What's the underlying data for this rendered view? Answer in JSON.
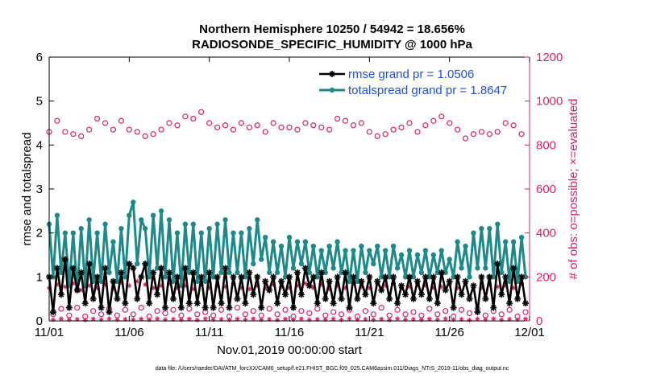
{
  "colors": {
    "rmse": "#000000",
    "spread": "#1a8a8a",
    "obs": "#d9206a",
    "legend_text": "#1f4fe0",
    "axis": "#000000"
  },
  "chart_data": {
    "type": "line",
    "title": "Northern Hemisphere 10250 / 54942 = 18.656%",
    "subtitle": "RADIOSONDE_SPECIFIC_HUMIDITY @ 1000 hPa",
    "xlabel": "Nov.01,2019 00:00:00 start",
    "ylabel": "rmse and totalspread",
    "y2label": "# of obs: o=possible; ×=evaluated",
    "xlim": [
      0,
      30
    ],
    "ylim": [
      0,
      6
    ],
    "y2lim": [
      0,
      1200
    ],
    "x_ticks": [
      0,
      5,
      10,
      15,
      20,
      25,
      30
    ],
    "x_tick_labels": [
      "11/01",
      "11/06",
      "11/11",
      "11/16",
      "11/21",
      "11/26",
      "12/01"
    ],
    "y_ticks": [
      0,
      1,
      2,
      3,
      4,
      5,
      6
    ],
    "y_tick_labels": [
      "0",
      "1",
      "2",
      "3",
      "4",
      "5",
      "6"
    ],
    "y2_ticks": [
      0,
      200,
      400,
      600,
      800,
      1000,
      1200
    ],
    "y2_tick_labels": [
      "0",
      "200",
      "400",
      "600",
      "800",
      "1000",
      "1200"
    ],
    "legend": {
      "position": "top-right",
      "entries": [
        {
          "name": "rmse grand pr = 1.0506",
          "key": "rmse"
        },
        {
          "name": "totalspread grand pr = 1.8647",
          "key": "spread"
        }
      ]
    },
    "series": [
      {
        "name": "rmse",
        "x": [
          0.0,
          0.25,
          0.5,
          0.75,
          1.0,
          1.25,
          1.5,
          1.75,
          2.0,
          2.25,
          2.5,
          2.75,
          3.0,
          3.25,
          3.5,
          3.75,
          4.0,
          4.25,
          4.5,
          4.75,
          5.0,
          5.25,
          5.5,
          5.75,
          6.0,
          6.25,
          6.5,
          6.75,
          7.0,
          7.25,
          7.5,
          7.75,
          8.0,
          8.25,
          8.5,
          8.75,
          9.0,
          9.25,
          9.5,
          9.75,
          10.0,
          10.25,
          10.5,
          10.75,
          11.0,
          11.25,
          11.5,
          11.75,
          12.0,
          12.25,
          12.5,
          12.75,
          13.0,
          13.25,
          13.5,
          13.75,
          14.0,
          14.25,
          14.5,
          14.75,
          15.0,
          15.25,
          15.5,
          15.75,
          16.0,
          16.25,
          16.5,
          16.75,
          17.0,
          17.25,
          17.5,
          17.75,
          18.0,
          18.25,
          18.5,
          18.75,
          19.0,
          19.25,
          19.5,
          19.75,
          20.0,
          20.25,
          20.5,
          20.75,
          21.0,
          21.25,
          21.5,
          21.75,
          22.0,
          22.25,
          22.5,
          22.75,
          23.0,
          23.25,
          23.5,
          23.75,
          24.0,
          24.25,
          24.5,
          24.75,
          25.0,
          25.25,
          25.5,
          25.75,
          26.0,
          26.25,
          26.5,
          26.75,
          27.0,
          27.25,
          27.5,
          27.75,
          28.0,
          28.25,
          28.5,
          28.75,
          29.0,
          29.25,
          29.5,
          29.75
        ],
        "values": [
          1.0,
          0.2,
          1.2,
          0.6,
          1.4,
          0.3,
          1.2,
          0.7,
          1.1,
          0.4,
          1.3,
          0.5,
          1.0,
          0.3,
          1.2,
          0.2,
          0.9,
          0.5,
          1.1,
          0.4,
          1.3,
          1.2,
          0.5,
          1.0,
          1.3,
          0.4,
          1.1,
          0.6,
          1.2,
          0.3,
          1.1,
          0.5,
          1.0,
          0.3,
          1.2,
          0.4,
          1.1,
          0.4,
          1.0,
          0.3,
          1.1,
          0.3,
          1.0,
          0.4,
          1.2,
          0.3,
          1.0,
          0.5,
          1.0,
          0.4,
          1.1,
          0.6,
          1.0,
          0.3,
          0.9,
          0.7,
          1.0,
          0.4,
          0.9,
          0.6,
          1.0,
          0.3,
          1.1,
          0.6,
          1.2,
          0.8,
          1.0,
          0.4,
          1.1,
          0.5,
          0.9,
          0.4,
          1.0,
          0.5,
          1.1,
          0.3,
          1.0,
          0.5,
          0.9,
          0.6,
          1.0,
          0.4,
          0.9,
          0.7,
          1.0,
          0.5,
          1.0,
          0.4,
          0.8,
          0.6,
          1.0,
          0.5,
          0.9,
          0.6,
          1.0,
          0.5,
          1.0,
          0.4,
          1.1,
          0.7,
          0.9,
          0.3,
          1.0,
          0.6,
          0.9,
          0.5,
          0.8,
          0.2,
          1.0,
          0.5,
          1.0,
          0.3,
          1.3,
          0.6,
          1.0,
          0.4,
          1.2,
          0.5,
          1.0,
          0.4
        ]
      },
      {
        "name": "totalspread",
        "x": [
          0.0,
          0.25,
          0.5,
          0.75,
          1.0,
          1.25,
          1.5,
          1.75,
          2.0,
          2.25,
          2.5,
          2.75,
          3.0,
          3.25,
          3.5,
          3.75,
          4.0,
          4.25,
          4.5,
          4.75,
          5.0,
          5.25,
          5.5,
          5.75,
          6.0,
          6.25,
          6.5,
          6.75,
          7.0,
          7.25,
          7.5,
          7.75,
          8.0,
          8.25,
          8.5,
          8.75,
          9.0,
          9.25,
          9.5,
          9.75,
          10.0,
          10.25,
          10.5,
          10.75,
          11.0,
          11.25,
          11.5,
          11.75,
          12.0,
          12.25,
          12.5,
          12.75,
          13.0,
          13.25,
          13.5,
          13.75,
          14.0,
          14.25,
          14.5,
          14.75,
          15.0,
          15.25,
          15.5,
          15.75,
          16.0,
          16.25,
          16.5,
          16.75,
          17.0,
          17.25,
          17.5,
          17.75,
          18.0,
          18.25,
          18.5,
          18.75,
          19.0,
          19.25,
          19.5,
          19.75,
          20.0,
          20.25,
          20.5,
          20.75,
          21.0,
          21.25,
          21.5,
          21.75,
          22.0,
          22.25,
          22.5,
          22.75,
          23.0,
          23.25,
          23.5,
          23.75,
          24.0,
          24.25,
          24.5,
          24.75,
          25.0,
          25.25,
          25.5,
          25.75,
          26.0,
          26.25,
          26.5,
          26.75,
          27.0,
          27.25,
          27.5,
          27.75,
          28.0,
          28.25,
          28.5,
          28.75,
          29.0,
          29.25,
          29.5,
          29.75
        ],
        "values": [
          2.2,
          1.0,
          2.4,
          1.1,
          2.0,
          0.8,
          2.0,
          0.7,
          2.1,
          0.8,
          2.3,
          0.9,
          2.0,
          0.9,
          2.2,
          1.1,
          1.8,
          0.9,
          2.1,
          1.0,
          2.4,
          2.7,
          1.3,
          2.3,
          2.1,
          1.0,
          2.4,
          1.2,
          2.5,
          1.0,
          2.3,
          0.9,
          2.0,
          0.8,
          2.2,
          1.1,
          2.2,
          0.9,
          2.0,
          0.9,
          2.1,
          1.0,
          2.2,
          1.1,
          2.3,
          1.1,
          2.0,
          1.1,
          2.0,
          1.0,
          2.1,
          1.3,
          2.3,
          1.4,
          1.9,
          1.1,
          1.8,
          1.1,
          1.7,
          1.0,
          1.9,
          1.2,
          1.8,
          1.3,
          1.8,
          1.1,
          1.7,
          1.0,
          1.6,
          1.1,
          1.7,
          1.2,
          1.8,
          1.1,
          1.6,
          0.9,
          1.6,
          0.9,
          1.7,
          1.1,
          1.6,
          1.3,
          1.7,
          1.0,
          1.6,
          1.0,
          1.7,
          1.2,
          1.5,
          1.0,
          1.6,
          1.0,
          1.5,
          1.1,
          1.6,
          1.0,
          1.5,
          1.1,
          1.6,
          1.1,
          1.4,
          1.0,
          1.8,
          1.2,
          1.7,
          1.0,
          2.0,
          1.2,
          2.1,
          1.2,
          2.1,
          1.0,
          2.2,
          1.1,
          1.8,
          0.9,
          1.8,
          0.9,
          1.9,
          1.0
        ]
      },
      {
        "name": "obs possible (o)",
        "axis": "right",
        "x": [
          0.0,
          0.5,
          1.0,
          1.5,
          2.0,
          2.5,
          3.0,
          3.5,
          4.0,
          4.5,
          5.0,
          5.5,
          6.0,
          6.5,
          7.0,
          7.5,
          8.0,
          8.5,
          9.0,
          9.5,
          10.0,
          10.5,
          11.0,
          11.5,
          12.0,
          12.5,
          13.0,
          13.5,
          14.0,
          14.5,
          15.0,
          15.5,
          16.0,
          16.5,
          17.0,
          17.5,
          18.0,
          18.5,
          19.0,
          19.5,
          20.0,
          20.5,
          21.0,
          21.5,
          22.0,
          22.5,
          23.0,
          23.5,
          24.0,
          24.5,
          25.0,
          25.5,
          26.0,
          26.5,
          27.0,
          27.5,
          28.0,
          28.5,
          29.0,
          29.5
        ],
        "values": [
          860,
          910,
          860,
          850,
          840,
          870,
          920,
          900,
          870,
          910,
          870,
          860,
          840,
          850,
          870,
          900,
          890,
          930,
          920,
          950,
          900,
          880,
          890,
          870,
          900,
          880,
          890,
          860,
          900,
          880,
          880,
          870,
          900,
          890,
          880,
          870,
          920,
          910,
          890,
          900,
          860,
          840,
          850,
          870,
          880,
          900,
          860,
          890,
          910,
          930,
          900,
          870,
          830,
          850,
          860,
          850,
          860,
          900,
          890,
          850
        ]
      },
      {
        "name": "obs possible low (o)",
        "axis": "right",
        "x": [
          0.25,
          0.75,
          1.25,
          1.75,
          2.25,
          2.75,
          3.25,
          3.75,
          4.25,
          4.75,
          5.25,
          5.75,
          6.25,
          6.75,
          7.25,
          7.75,
          8.25,
          8.75,
          9.25,
          9.75,
          10.25,
          10.75,
          11.25,
          11.75,
          12.25,
          12.75,
          13.25,
          13.75,
          14.25,
          14.75,
          15.25,
          15.75,
          16.25,
          16.75,
          17.25,
          17.75,
          18.25,
          18.75,
          19.25,
          19.75,
          20.25,
          20.75,
          21.25,
          21.75,
          22.25,
          22.75,
          23.25,
          23.75,
          24.25,
          24.75,
          25.25,
          25.75,
          26.25,
          26.75,
          27.25,
          27.75,
          28.25,
          28.75,
          29.25,
          29.75
        ],
        "values": [
          30,
          55,
          25,
          60,
          20,
          45,
          30,
          55,
          25,
          50,
          30,
          60,
          20,
          45,
          35,
          50,
          25,
          55,
          30,
          40,
          25,
          50,
          20,
          60,
          30,
          45,
          25,
          55,
          30,
          50,
          20,
          45,
          35,
          55,
          25,
          40,
          30,
          50,
          20,
          45,
          30,
          60,
          25,
          50,
          30,
          40,
          25,
          55,
          30,
          45,
          20,
          50,
          35,
          55,
          25,
          45,
          30,
          50,
          20,
          40
        ]
      },
      {
        "name": "obs evaluated (×)",
        "axis": "right",
        "x": [
          0.0,
          0.5,
          1.0,
          1.5,
          2.0,
          2.5,
          3.0,
          3.5,
          4.0,
          4.5,
          5.0,
          5.5,
          6.0,
          6.5,
          7.0,
          7.5,
          8.0,
          8.5,
          9.0,
          9.5,
          10.0,
          10.5,
          11.0,
          11.5,
          12.0,
          12.5,
          13.0,
          13.5,
          14.0,
          14.5,
          15.0,
          15.5,
          16.0,
          16.5,
          17.0,
          17.5,
          18.0,
          18.5,
          19.0,
          19.5,
          20.0,
          20.5,
          21.0,
          21.5,
          22.0,
          22.5,
          23.0,
          23.5,
          24.0,
          24.5,
          25.0,
          25.5,
          26.0,
          26.5,
          27.0,
          27.5,
          28.0,
          28.5,
          29.0,
          29.5
        ],
        "values": [
          150,
          165,
          155,
          170,
          140,
          160,
          150,
          165,
          145,
          175,
          160,
          180,
          165,
          150,
          160,
          170,
          150,
          160,
          145,
          165,
          150,
          160,
          155,
          170,
          150,
          145,
          160,
          150,
          165,
          155,
          150,
          160,
          170,
          150,
          165,
          145,
          160,
          150,
          170,
          155,
          150,
          165,
          160,
          170,
          150,
          155,
          165,
          160,
          150,
          155,
          165,
          150,
          170,
          160,
          150,
          165,
          155,
          160,
          150,
          170
        ]
      },
      {
        "name": "obs evaluated low (×)",
        "axis": "right",
        "x": [
          0.25,
          0.75,
          1.25,
          1.75,
          2.25,
          2.75,
          3.25,
          3.75,
          4.25,
          4.75,
          5.25,
          5.75,
          6.25,
          6.75,
          7.25,
          7.75,
          8.25,
          8.75,
          9.25,
          9.75,
          10.25,
          10.75,
          11.25,
          11.75,
          12.25,
          12.75,
          13.25,
          13.75,
          14.25,
          14.75,
          15.25,
          15.75,
          16.25,
          16.75,
          17.25,
          17.75,
          18.25,
          18.75,
          19.25,
          19.75,
          20.25,
          20.75,
          21.25,
          21.75,
          22.25,
          22.75,
          23.25,
          23.75,
          24.25,
          24.75,
          25.25,
          25.75,
          26.25,
          26.75,
          27.25,
          27.75,
          28.25,
          28.75,
          29.25,
          29.75
        ],
        "values": [
          5,
          10,
          5,
          8,
          4,
          9,
          6,
          10,
          5,
          8,
          6,
          9,
          5,
          10,
          6,
          8,
          5,
          9,
          4,
          10,
          6,
          8,
          5,
          9,
          6,
          10,
          5,
          8,
          4,
          9,
          6,
          10,
          5,
          8,
          6,
          9,
          5,
          10,
          6,
          8,
          5,
          9,
          4,
          10,
          6,
          8,
          5,
          9,
          6,
          10,
          5,
          8,
          4,
          9,
          6,
          10,
          5,
          8,
          6,
          9
        ]
      }
    ]
  },
  "footer": {
    "data_file": "data file: /Users/raeder/DAI/ATM_forcXX/CAM6_setup/f.e21.FHIST_BGC.f09_025.CAM6assim.011/Diags_NTrS_2019-11/obs_diag_output.nc"
  }
}
